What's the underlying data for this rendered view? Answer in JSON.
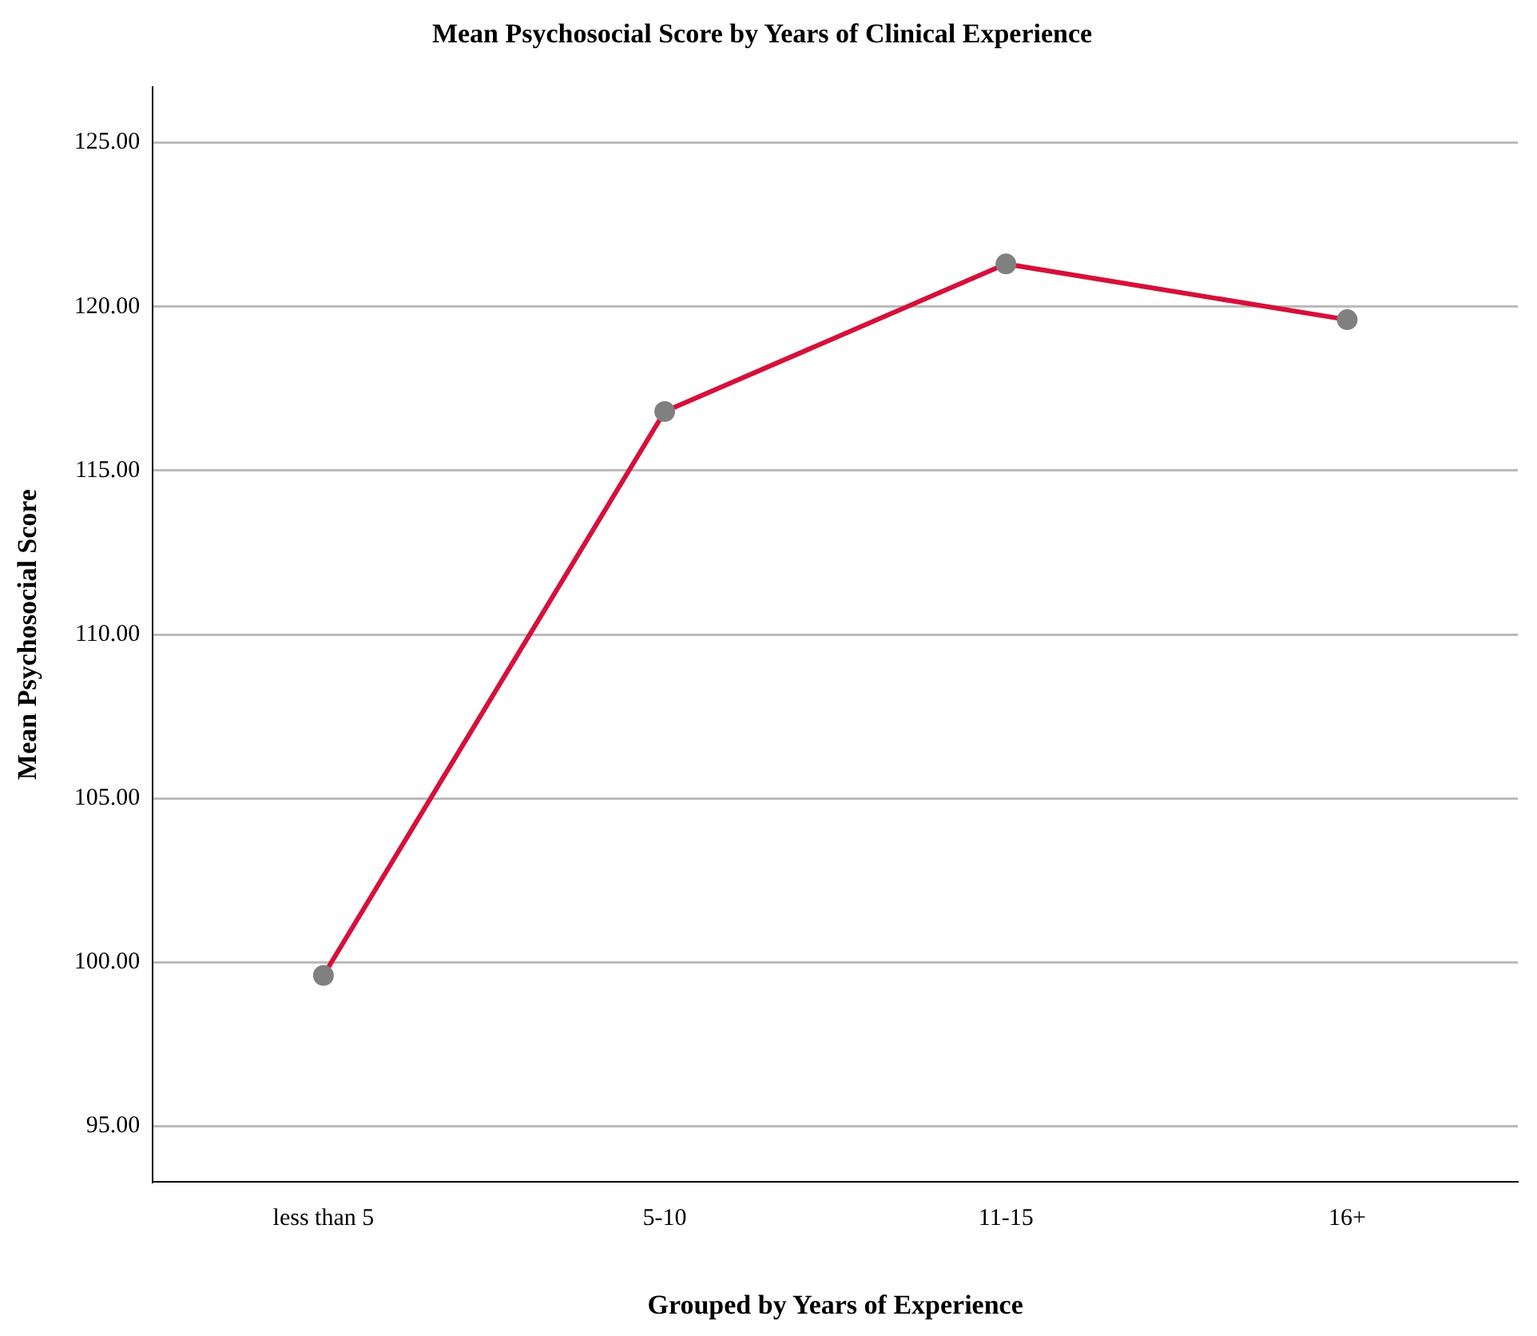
{
  "chart_data": {
    "type": "line",
    "title": "Mean Psychosocial Score by Years of Clinical Experience",
    "xlabel": "Grouped by Years of Experience",
    "ylabel": "Mean Psychosocial Score",
    "categories": [
      "less than 5",
      "5-10",
      "11-15",
      "16+"
    ],
    "series": [
      {
        "color": "#d6103a",
        "colors": [
          "#808080",
          "#808080",
          "#808080",
          "#808080"
        ],
        "values": [
          99.6,
          116.8,
          121.3,
          119.6
        ]
      }
    ],
    "ylim": [
      93.3,
      126.7
    ],
    "yticks": [
      {
        "value": 95,
        "label": "95.00"
      },
      {
        "value": 100,
        "label": "100.00"
      },
      {
        "value": 105,
        "label": "105.00"
      },
      {
        "value": 110,
        "label": "110.00"
      },
      {
        "value": 115,
        "label": "115.00"
      },
      {
        "value": 120,
        "label": "120.00"
      },
      {
        "value": 125,
        "label": "125.00"
      }
    ],
    "grid": "y",
    "marker": "circle",
    "line_style": "solid",
    "legend": false
  }
}
